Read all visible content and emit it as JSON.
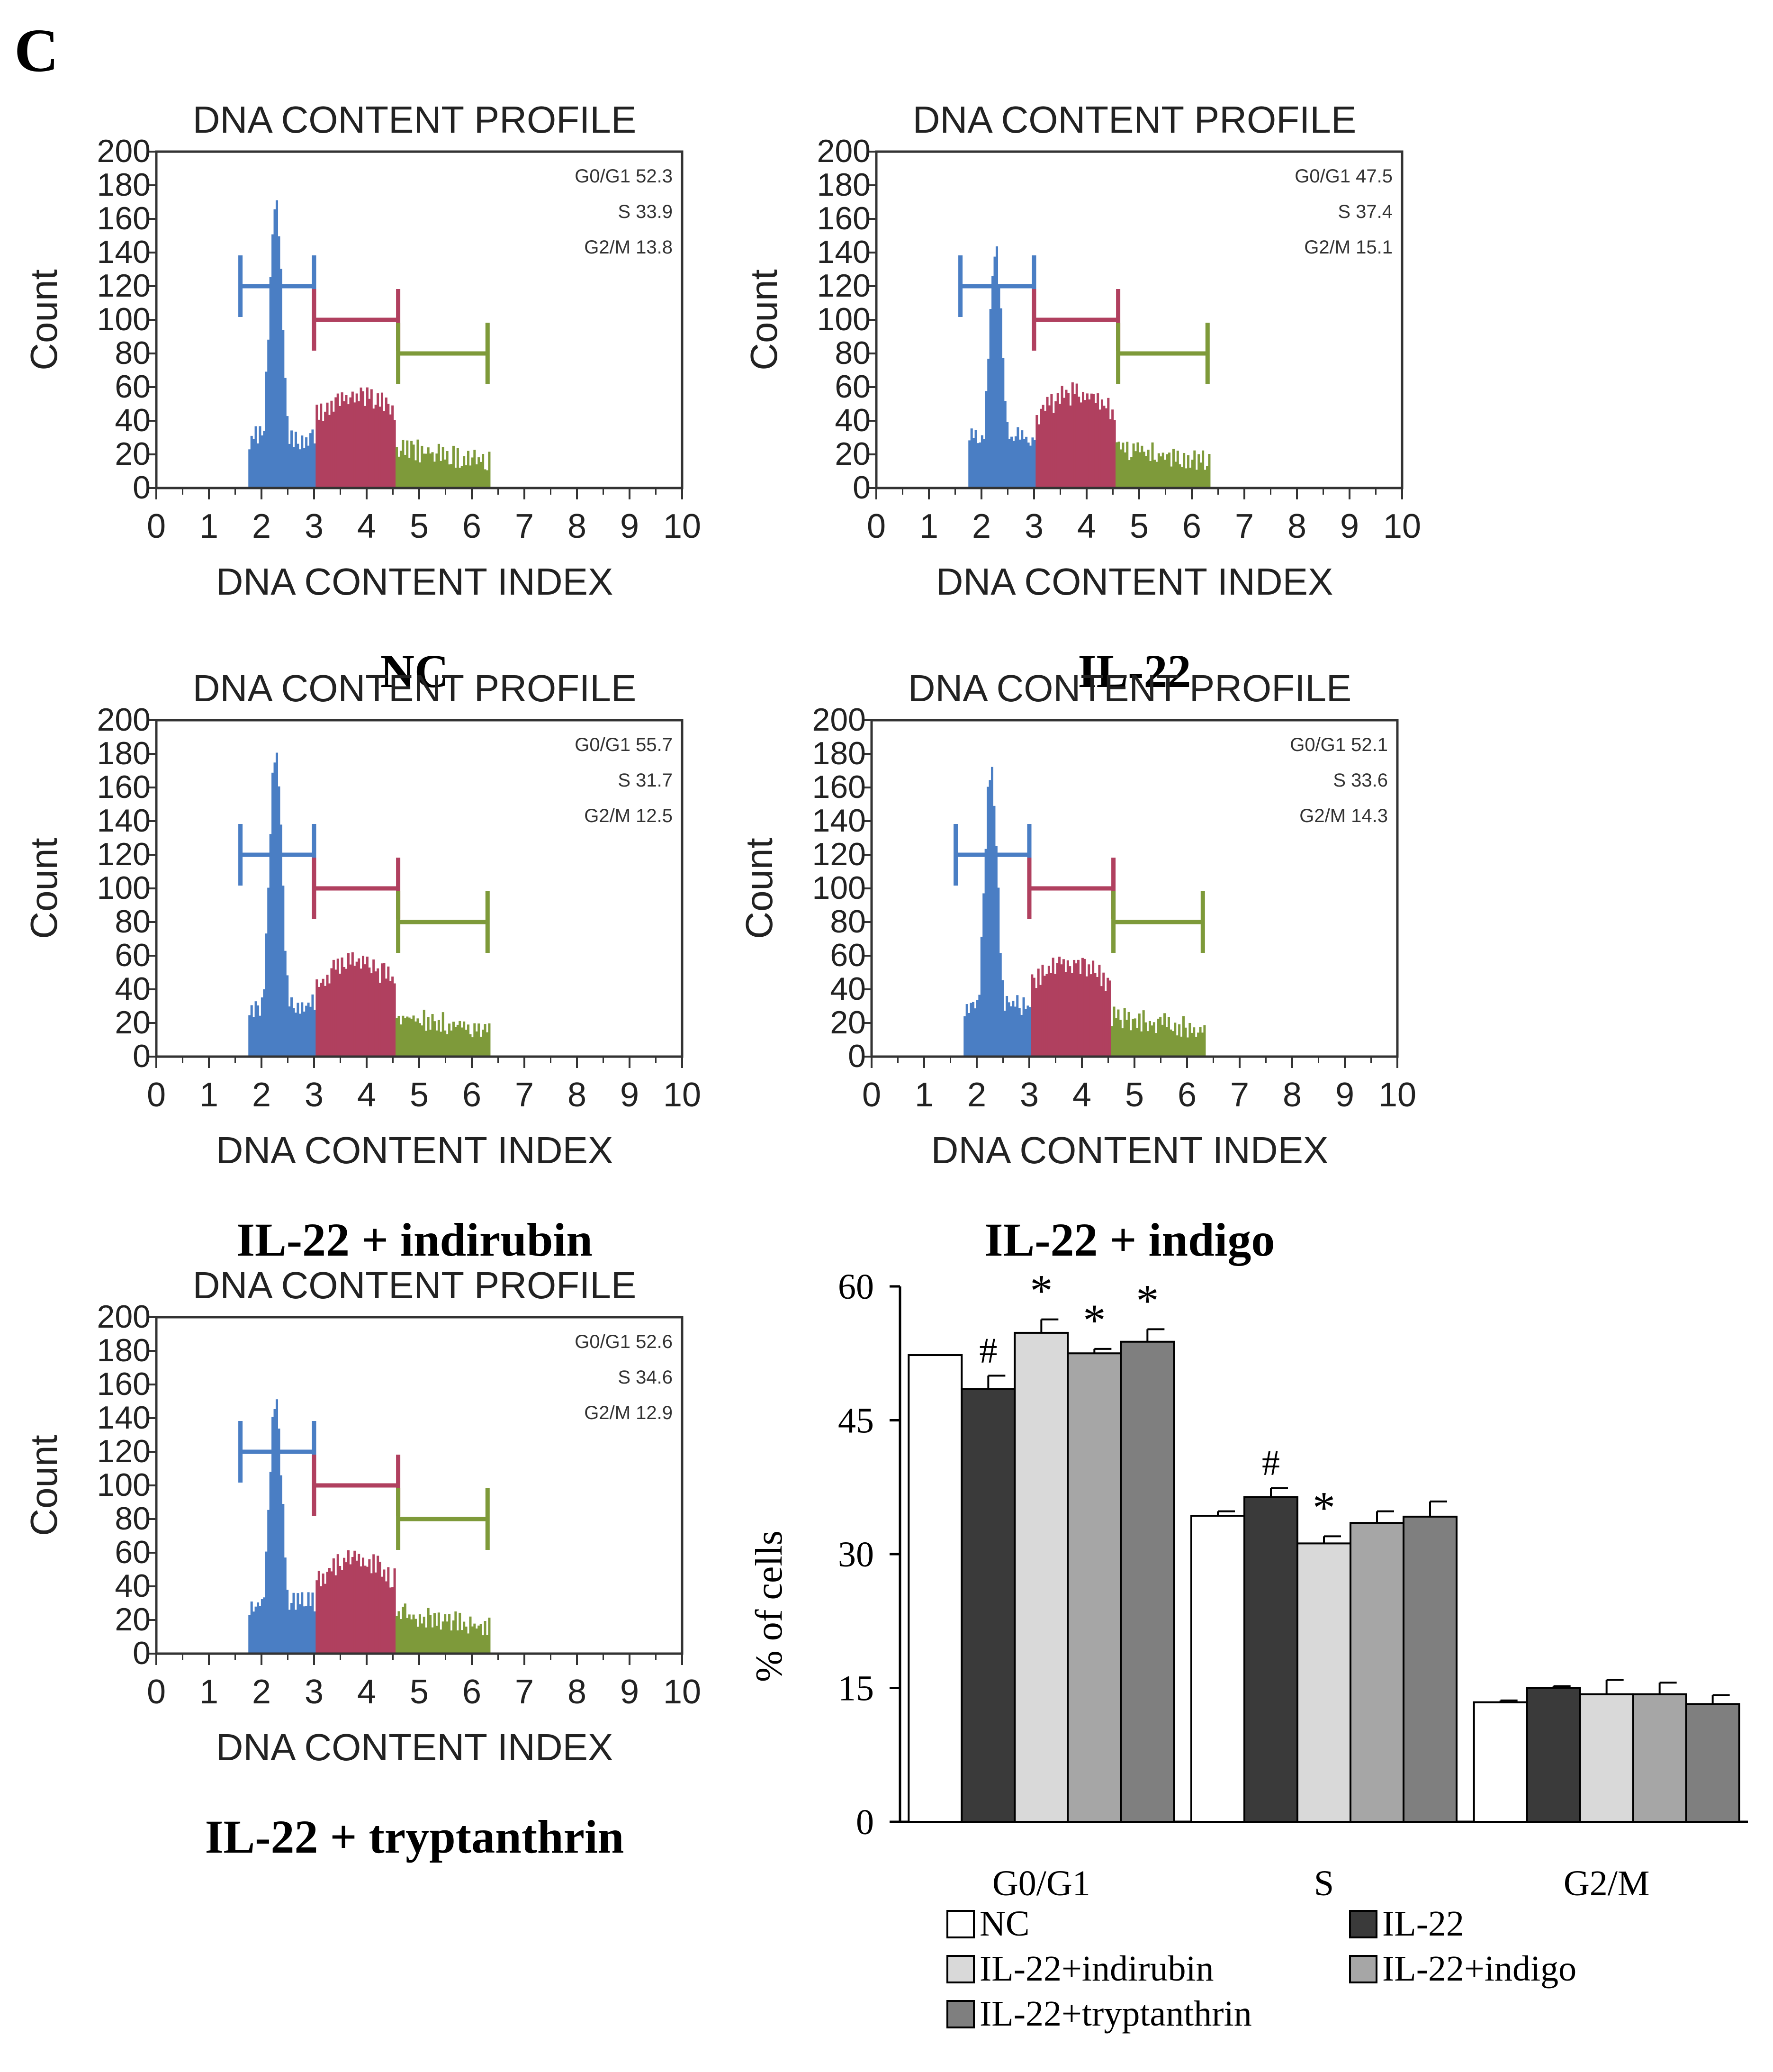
{
  "panel_label": "C",
  "colors": {
    "g0g1": "#4a7ec4",
    "s": "#b0405f",
    "g2m": "#7e9a3a",
    "bar_nc": "#ffffff",
    "bar_il22": "#3a3a3a",
    "bar_indirubin": "#d9d9d9",
    "bar_indigo": "#a6a6a6",
    "bar_tryptanthrin": "#7f7f7f"
  },
  "histograms": [
    {
      "caption": "NC",
      "title": "DNA CONTENT PROFILE",
      "ylabel": "Count",
      "xlabel": "DNA CONTENT INDEX",
      "stats": [
        "G0/G1 52.3",
        "S 33.9",
        "G2/M 13.8"
      ],
      "peak": 168
    },
    {
      "caption": "IL-22",
      "title": "DNA CONTENT PROFILE",
      "ylabel": "Count",
      "xlabel": "DNA CONTENT INDEX",
      "stats": [
        "G0/G1 47.5",
        "S 37.4",
        "G2/M 15.1"
      ],
      "peak": 140
    },
    {
      "caption": "IL-22 + indirubin",
      "title": "DNA CONTENT PROFILE",
      "ylabel": "Count",
      "xlabel": "DNA CONTENT INDEX",
      "stats": [
        "G0/G1 55.7",
        "S 31.7",
        "G2/M 12.5"
      ],
      "peak": 180
    },
    {
      "caption": "IL-22 + indigo",
      "title": "DNA CONTENT PROFILE",
      "ylabel": "Count",
      "xlabel": "DNA CONTENT INDEX",
      "stats": [
        "G0/G1 52.1",
        "S 33.6",
        "G2/M 14.3"
      ],
      "peak": 172
    },
    {
      "caption": "IL-22 + tryptanthrin",
      "title": "DNA CONTENT PROFILE",
      "ylabel": "Count",
      "xlabel": "DNA CONTENT INDEX",
      "stats": [
        "G0/G1 52.6",
        "S 34.6",
        "G2/M 12.9"
      ],
      "peak": 150
    }
  ],
  "hist_axes": {
    "x_ticks": [
      "0",
      "1",
      "2",
      "3",
      "4",
      "5",
      "6",
      "7",
      "8",
      "9",
      "10"
    ],
    "y_ticks": [
      "0",
      "20",
      "40",
      "60",
      "80",
      "100",
      "120",
      "140",
      "160",
      "180",
      "200"
    ],
    "xlim": [
      0,
      10
    ],
    "ylim": [
      0,
      200
    ]
  },
  "chart_data": {
    "type": "bar",
    "ylabel": "% of cells",
    "ylim": [
      0,
      60
    ],
    "yticks": [
      "0",
      "15",
      "30",
      "45",
      "60"
    ],
    "categories": [
      "G0/G1",
      "S",
      "G2/M"
    ],
    "series": [
      {
        "name": "NC",
        "values": [
          52.3,
          34.3,
          13.4
        ],
        "errors": [
          0,
          0.5,
          0.2
        ]
      },
      {
        "name": "IL-22",
        "values": [
          48.5,
          36.4,
          15.0
        ],
        "errors": [
          1.5,
          1.0,
          0.2
        ]
      },
      {
        "name": "IL-22+indirubin",
        "values": [
          54.8,
          31.2,
          14.3
        ],
        "errors": [
          1.5,
          0.8,
          1.6
        ]
      },
      {
        "name": "IL-22+indigo",
        "values": [
          52.5,
          33.5,
          14.3
        ],
        "errors": [
          0.5,
          1.3,
          1.3
        ]
      },
      {
        "name": "IL-22+tryptanthrin",
        "values": [
          53.8,
          34.2,
          13.2
        ],
        "errors": [
          1.4,
          1.7,
          1.0
        ]
      }
    ],
    "annotations": [
      {
        "category": 0,
        "series": 1,
        "text": "#"
      },
      {
        "category": 0,
        "series": 2,
        "text": "*"
      },
      {
        "category": 0,
        "series": 3,
        "text": "*"
      },
      {
        "category": 0,
        "series": 4,
        "text": "*"
      },
      {
        "category": 1,
        "series": 1,
        "text": "#"
      },
      {
        "category": 1,
        "series": 2,
        "text": "*"
      }
    ],
    "legend": [
      "NC",
      "IL-22",
      "IL-22+indirubin",
      "IL-22+indigo",
      "IL-22+tryptanthrin"
    ]
  }
}
